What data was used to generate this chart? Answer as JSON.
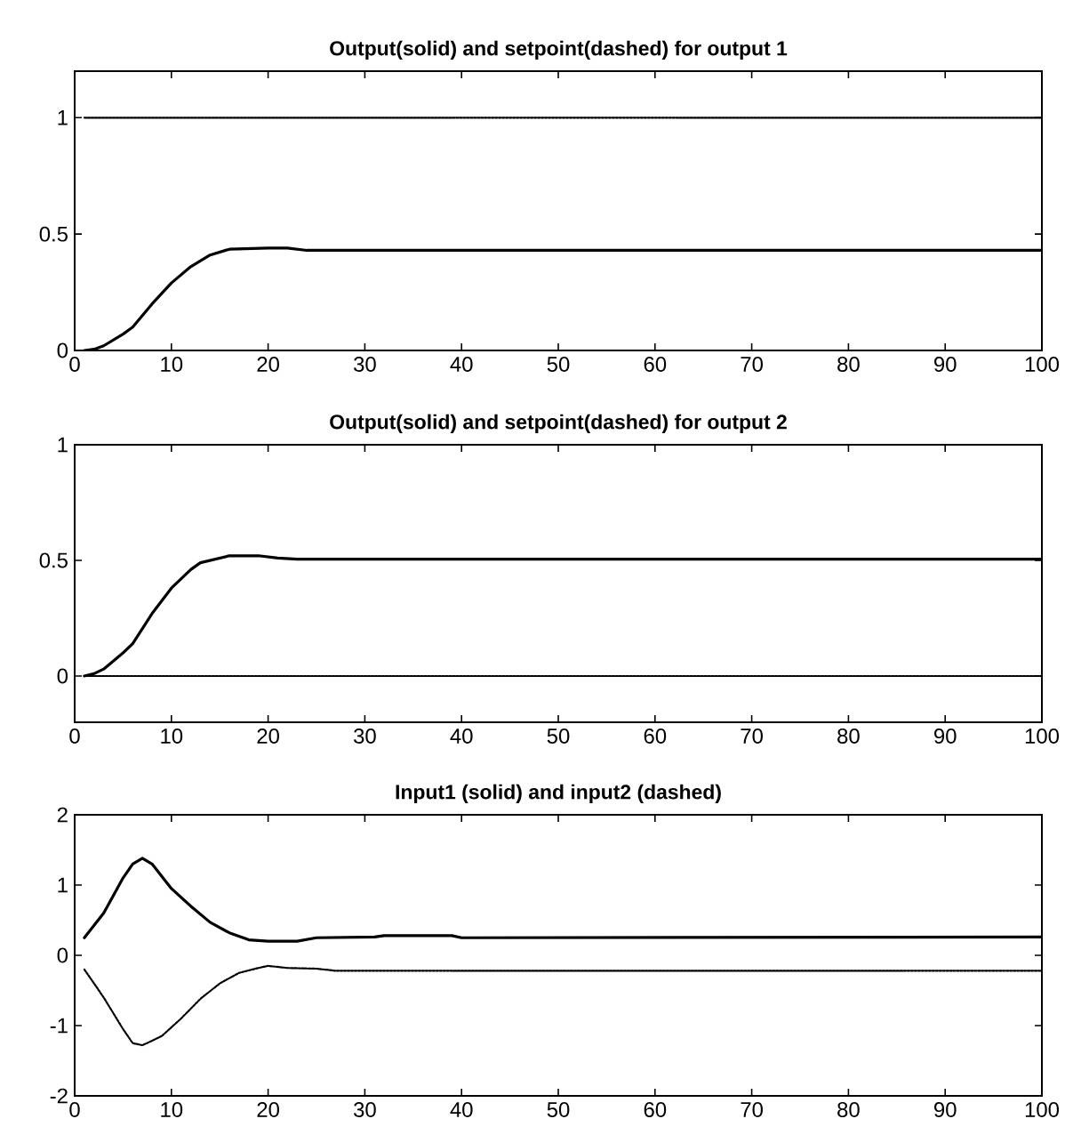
{
  "chart_data": [
    {
      "type": "line",
      "title": "Output(solid) and setpoint(dashed) for output 1",
      "xlim": [
        0,
        100
      ],
      "ylim": [
        0,
        1.2
      ],
      "xticks": [
        0,
        10,
        20,
        30,
        40,
        50,
        60,
        70,
        80,
        90,
        100
      ],
      "yticks": [
        0,
        0.5,
        1
      ],
      "grid": false,
      "marker": "none",
      "series": [
        {
          "color": "#000000",
          "line_style": "solid",
          "x": [
            1,
            2,
            3,
            5,
            6,
            8,
            10,
            12,
            14,
            16,
            20,
            22,
            24,
            30,
            100
          ],
          "values": [
            0,
            0.005,
            0.02,
            0.07,
            0.1,
            0.2,
            0.29,
            0.36,
            0.41,
            0.435,
            0.44,
            0.44,
            0.43,
            0.43,
            0.43
          ]
        },
        {
          "color": "#000000",
          "line_style": "dotted",
          "x": [
            1,
            100
          ],
          "values": [
            1,
            1
          ]
        }
      ]
    },
    {
      "type": "line",
      "title": "Output(solid) and setpoint(dashed) for output 2",
      "xlim": [
        0,
        100
      ],
      "ylim": [
        -0.2,
        1
      ],
      "xticks": [
        0,
        10,
        20,
        30,
        40,
        50,
        60,
        70,
        80,
        90,
        100
      ],
      "yticks": [
        0,
        0.5,
        1
      ],
      "grid": false,
      "marker": "none",
      "series": [
        {
          "color": "#000000",
          "line_style": "solid",
          "x": [
            1,
            2,
            3,
            5,
            6,
            8,
            10,
            12,
            13,
            16,
            19,
            21,
            23,
            100
          ],
          "values": [
            0,
            0.01,
            0.03,
            0.1,
            0.14,
            0.27,
            0.38,
            0.46,
            0.49,
            0.52,
            0.52,
            0.51,
            0.505,
            0.505
          ]
        },
        {
          "color": "#000000",
          "line_style": "dotted",
          "x": [
            1,
            100
          ],
          "values": [
            0,
            0
          ]
        }
      ]
    },
    {
      "type": "line",
      "title": "Input1 (solid) and input2 (dashed)",
      "xlim": [
        0,
        100
      ],
      "ylim": [
        -2,
        2
      ],
      "xticks": [
        0,
        10,
        20,
        30,
        40,
        50,
        60,
        70,
        80,
        90,
        100
      ],
      "yticks": [
        -2,
        -1,
        0,
        1,
        2
      ],
      "grid": false,
      "marker": "none",
      "series": [
        {
          "color": "#000000",
          "line_style": "solid",
          "x": [
            1,
            3,
            5,
            6,
            7,
            8,
            10,
            12,
            14,
            16,
            18,
            20,
            23,
            25,
            31,
            32,
            39,
            40,
            100
          ],
          "values": [
            0.25,
            0.6,
            1.1,
            1.3,
            1.38,
            1.3,
            0.95,
            0.7,
            0.47,
            0.32,
            0.22,
            0.2,
            0.2,
            0.25,
            0.26,
            0.28,
            0.28,
            0.25,
            0.26
          ]
        },
        {
          "color": "#000000",
          "line_style": "dotted",
          "x": [
            1,
            3,
            5,
            6,
            7,
            9,
            11,
            13,
            15,
            17,
            19,
            20,
            22,
            25,
            27,
            100
          ],
          "values": [
            -0.2,
            -0.6,
            -1.05,
            -1.25,
            -1.28,
            -1.15,
            -0.9,
            -0.62,
            -0.4,
            -0.25,
            -0.18,
            -0.15,
            -0.18,
            -0.19,
            -0.22,
            -0.22
          ]
        }
      ]
    }
  ]
}
